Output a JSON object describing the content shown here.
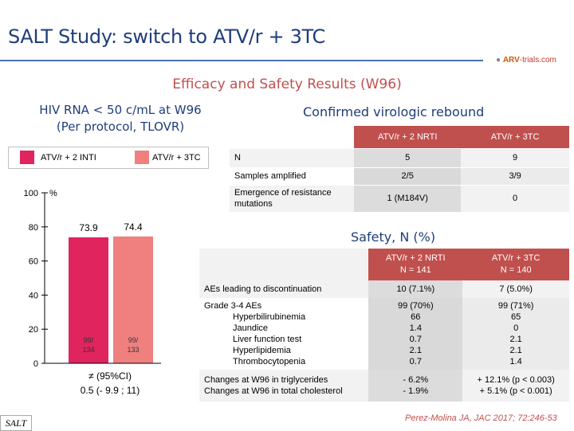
{
  "title": "SALT Study: switch to ATV/r + 3TC",
  "logo": {
    "brand": "ARV",
    "suffix": "-trials.com"
  },
  "subtitle": "Efficacy and Safety Results (W96)",
  "efficacy": {
    "heading_line1": "HIV RNA < 50 c/mL at W96",
    "heading_line2": "(Per protocol, TLOVR)"
  },
  "chart_data": {
    "type": "bar",
    "categories": [
      "ATV/r + 2 INTI",
      "ATV/r + 3TC"
    ],
    "values": [
      73.9,
      74.4
    ],
    "value_labels": [
      "73.9",
      "74.4"
    ],
    "count_labels": [
      [
        "99/",
        "134"
      ],
      [
        "99/",
        "133"
      ]
    ],
    "ylabel": "%",
    "ylim": [
      0,
      100
    ],
    "yticks": [
      0,
      20,
      40,
      60,
      80,
      100
    ],
    "legend": {
      "placement": "top",
      "items": [
        "ATV/r + 2 INTI",
        "ATV/r + 3TC"
      ]
    },
    "colors": [
      "#e0245e",
      "#f08080"
    ],
    "annotation_line1": "≠ (95%CI)",
    "annotation_line2": "0.5 (- 9.9 ; 11)"
  },
  "rebound": {
    "heading": "Confirmed virologic rebound",
    "columns": [
      "ATV/r + 2 NRTI",
      "ATV/r + 3TC"
    ],
    "rows": [
      {
        "label": "N",
        "v1": "5",
        "v2": "9"
      },
      {
        "label": "Samples amplified",
        "v1": "2/5",
        "v2": "3/9"
      },
      {
        "label1": "Emergence of resistance",
        "label2": "mutations",
        "v1": "1 (M184V)",
        "v2": "0"
      }
    ]
  },
  "safety": {
    "heading": "Safety, N (%)",
    "col1_line1": "ATV/r + 2 NRTI",
    "col1_line2": "N = 141",
    "col2_line1": "ATV/r + 3TC",
    "col2_line2": "N = 140",
    "ae_disc": {
      "label": "AEs leading to discontinuation",
      "v1": "10 (7.1%)",
      "v2": "7 (5.0%)"
    },
    "grade": {
      "items": [
        {
          "label": "Grade 3-4 AEs",
          "v1": "99 (70%)",
          "v2": "99 (71%)",
          "indent": false
        },
        {
          "label": "Hyperbilirubinemia",
          "v1": "66",
          "v2": "65",
          "indent": true
        },
        {
          "label": "Jaundice",
          "v1": "1.4",
          "v2": "0",
          "indent": true
        },
        {
          "label": "Liver function test",
          "v1": "0.7",
          "v2": "2.1",
          "indent": true
        },
        {
          "label": "Hyperlipidemia",
          "v1": "2.1",
          "v2": "2.1",
          "indent": true
        },
        {
          "label": "Thrombocytopenia",
          "v1": "0.7",
          "v2": "1.4",
          "indent": true
        }
      ]
    },
    "lipids": {
      "label1": "Changes at W96 in triglycerides",
      "label2": "Changes at W96 in total cholesterol",
      "v1a": "- 6.2%",
      "v1b": "- 1.9%",
      "v2a": "+ 12.1% (p < 0.003)",
      "v2b": "+ 5.1% (p < 0.001)"
    }
  },
  "footer": {
    "badge": "SALT",
    "reference": "Perez-Molina JA, JAC 2017; 72:246-53"
  }
}
